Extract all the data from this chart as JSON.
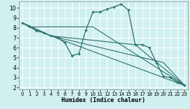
{
  "xlabel": "Humidex (Indice chaleur)",
  "bg_color": "#d0f0f0",
  "line_color": "#2a6e6a",
  "grid_color": "#ffffff",
  "xlim": [
    -0.5,
    23.5
  ],
  "ylim": [
    1.8,
    10.7
  ],
  "yticks": [
    2,
    3,
    4,
    5,
    6,
    7,
    8,
    9,
    10
  ],
  "xticks": [
    0,
    1,
    2,
    3,
    4,
    5,
    6,
    7,
    8,
    9,
    10,
    11,
    12,
    13,
    14,
    15,
    16,
    17,
    18,
    19,
    20,
    21,
    22,
    23
  ],
  "main_curve": {
    "x": [
      0,
      1,
      2,
      3,
      4,
      5,
      6,
      7,
      8,
      9,
      10,
      11,
      12,
      13,
      14,
      15,
      16,
      17,
      18,
      19,
      20,
      21,
      22,
      23
    ],
    "y": [
      8.5,
      8.1,
      7.7,
      7.5,
      7.2,
      7.0,
      6.5,
      5.2,
      5.4,
      7.8,
      9.6,
      9.6,
      9.9,
      10.1,
      10.4,
      9.8,
      6.3,
      6.3,
      6.0,
      4.5,
      3.1,
      3.0,
      2.5,
      2.2
    ]
  },
  "ref_lines": [
    {
      "x": [
        0,
        1,
        10,
        23
      ],
      "y": [
        8.5,
        8.1,
        8.1,
        2.2
      ]
    },
    {
      "x": [
        0,
        4,
        23
      ],
      "y": [
        8.5,
        7.2,
        2.2
      ]
    },
    {
      "x": [
        0,
        4,
        16,
        23
      ],
      "y": [
        8.5,
        7.2,
        6.3,
        2.2
      ]
    },
    {
      "x": [
        0,
        4,
        20,
        23
      ],
      "y": [
        8.5,
        7.2,
        4.5,
        2.2
      ]
    }
  ]
}
